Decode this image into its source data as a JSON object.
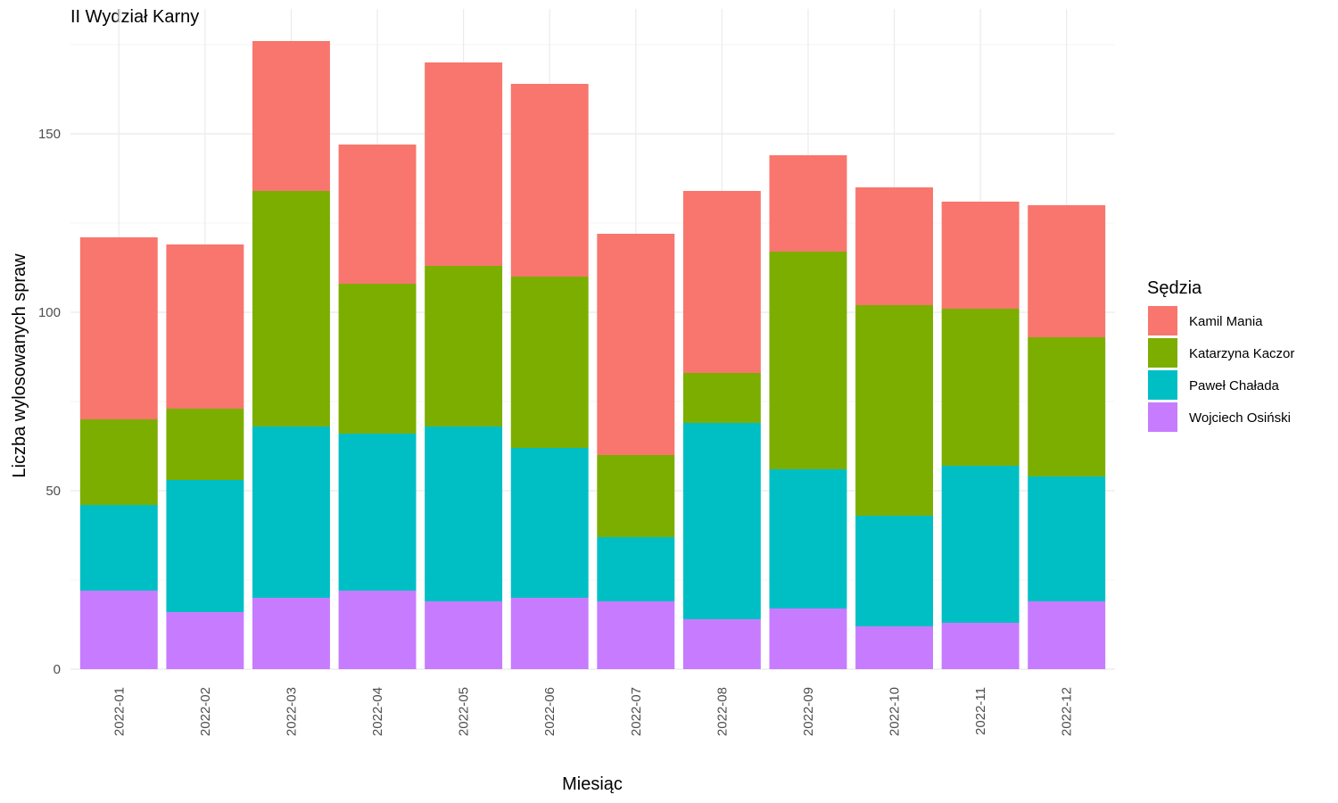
{
  "chart_data": {
    "type": "bar",
    "stacked": true,
    "title": "II Wydział Karny",
    "xlabel": "Miesiąc",
    "ylabel": "Liczba wylosowanych spraw",
    "ylim": [
      0,
      180
    ],
    "yticks": [
      0,
      50,
      100,
      150
    ],
    "grid": true,
    "legend": {
      "title": "Sędzia",
      "position": "right"
    },
    "categories": [
      "2022-01",
      "2022-02",
      "2022-03",
      "2022-04",
      "2022-05",
      "2022-06",
      "2022-07",
      "2022-08",
      "2022-09",
      "2022-10",
      "2022-11",
      "2022-12"
    ],
    "series": [
      {
        "name": "Wojciech Osiński",
        "color": "#C77CFF",
        "values": [
          22,
          16,
          20,
          22,
          19,
          20,
          19,
          14,
          17,
          12,
          13,
          19
        ]
      },
      {
        "name": "Paweł Chałada",
        "color": "#00BFC4",
        "values": [
          24,
          37,
          48,
          44,
          49,
          42,
          18,
          55,
          39,
          31,
          44,
          35
        ]
      },
      {
        "name": "Katarzyna Kaczor",
        "color": "#7CAE00",
        "values": [
          24,
          20,
          66,
          42,
          45,
          48,
          23,
          14,
          61,
          59,
          44,
          39
        ]
      },
      {
        "name": "Kamil Mania",
        "color": "#F8766D",
        "values": [
          51,
          46,
          42,
          39,
          57,
          54,
          62,
          51,
          27,
          33,
          30,
          37
        ]
      }
    ],
    "legend_order": [
      "Kamil Mania",
      "Katarzyna Kaczor",
      "Paweł Chałada",
      "Wojciech Osiński"
    ]
  }
}
